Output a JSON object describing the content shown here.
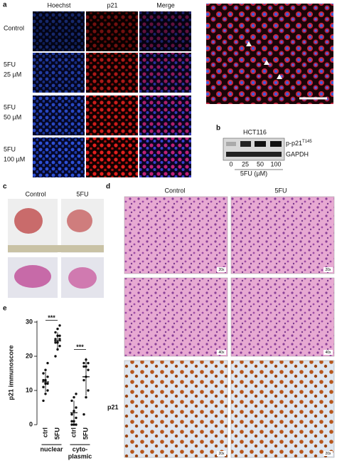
{
  "panel_labels": [
    "a",
    "b",
    "c",
    "d",
    "e"
  ],
  "panel_a": {
    "columns": [
      "Hoechst",
      "p21",
      "Merge"
    ],
    "rows": [
      [
        "Control"
      ],
      [
        "5FU",
        "25 µM"
      ],
      [
        "5FU",
        "50 µM"
      ],
      [
        "5FU",
        "100 µM"
      ]
    ]
  },
  "panel_b": {
    "cell_line": "HCT116",
    "bands": [
      {
        "name": "p-p21",
        "superscript": "T145"
      },
      {
        "name": "GAPDH"
      }
    ],
    "doses": [
      "0",
      "25",
      "50",
      "100"
    ],
    "unit_label": "5FU (µM)"
  },
  "panel_c": {
    "labels": [
      "Control",
      "5FU"
    ]
  },
  "panel_d": {
    "columns": [
      "Control",
      "5FU"
    ],
    "row_label": "p21",
    "magnifications": [
      "20x",
      "20x",
      "40x",
      "40x",
      "20x",
      "20x"
    ]
  },
  "panel_e": {
    "type": "dot",
    "ylabel": "p21 immunoscore",
    "ylim": [
      0,
      30
    ],
    "yticks": [
      0,
      10,
      20,
      30
    ],
    "categories": [
      "ctrl",
      "5FU",
      "ctrl",
      "5FU"
    ],
    "groups": [
      [
        "nuclear"
      ],
      [
        "cyto-",
        "plasmic"
      ]
    ],
    "significance": [
      "***",
      "***"
    ],
    "series": [
      {
        "values": [
          7,
          9,
          10,
          11,
          12,
          12,
          13,
          13,
          14,
          15,
          16,
          18
        ],
        "mean": 12.5,
        "sd": 3
      },
      {
        "values": [
          20,
          22,
          23,
          24,
          24,
          25,
          25,
          26,
          26,
          27,
          28,
          29
        ],
        "mean": 24.5,
        "sd": 2.5
      },
      {
        "values": [
          0,
          0,
          0,
          1,
          1,
          2,
          3,
          4,
          5,
          7,
          8,
          9
        ],
        "mean": 3.5,
        "sd": 3.5
      },
      {
        "values": [
          3,
          8,
          10,
          13,
          14,
          16,
          17,
          17,
          18,
          18,
          19
        ],
        "mean": 14,
        "sd": 5.5
      }
    ]
  }
}
